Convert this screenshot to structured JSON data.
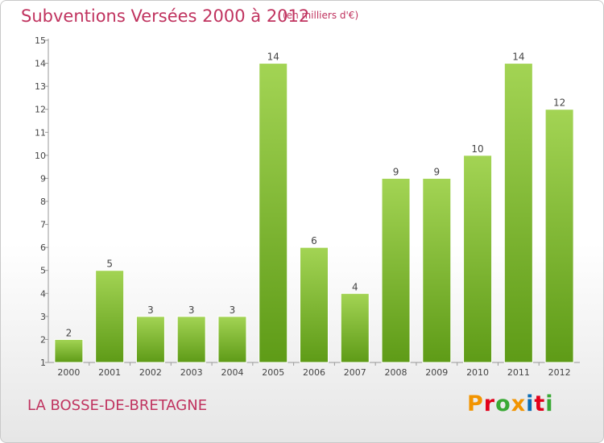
{
  "header": {
    "title": "Subventions Versées 2000 à 2012",
    "subtitle": "(en milliers d'€)"
  },
  "footer": {
    "place": "LA BOSSE-DE-BRETAGNE",
    "logo_text": "Proxiti",
    "logo_colors": [
      "#f29400",
      "#e2001a",
      "#3aa935",
      "#f29400",
      "#0a6cb4",
      "#e2001a",
      "#3aa935"
    ]
  },
  "colors": {
    "bar_light": "#a3d454",
    "bar_dark": "#5e9b17",
    "text_accent": "#c0335f"
  },
  "chart_data": {
    "type": "bar",
    "categories": [
      "2000",
      "2001",
      "2002",
      "2003",
      "2004",
      "2005",
      "2006",
      "2007",
      "2008",
      "2009",
      "2010",
      "2011",
      "2012"
    ],
    "values": [
      2,
      5,
      3,
      3,
      3,
      14,
      6,
      4,
      9,
      9,
      10,
      14,
      12
    ],
    "title": "Subventions Versées 2000 à 2012",
    "subtitle": "(en milliers d'€)",
    "xlabel": "",
    "ylabel": "",
    "ylim": [
      1,
      15
    ],
    "yticks": [
      1,
      2,
      3,
      4,
      5,
      6,
      7,
      8,
      9,
      10,
      11,
      12,
      13,
      14,
      15
    ],
    "grid": false,
    "data_labels": true
  }
}
